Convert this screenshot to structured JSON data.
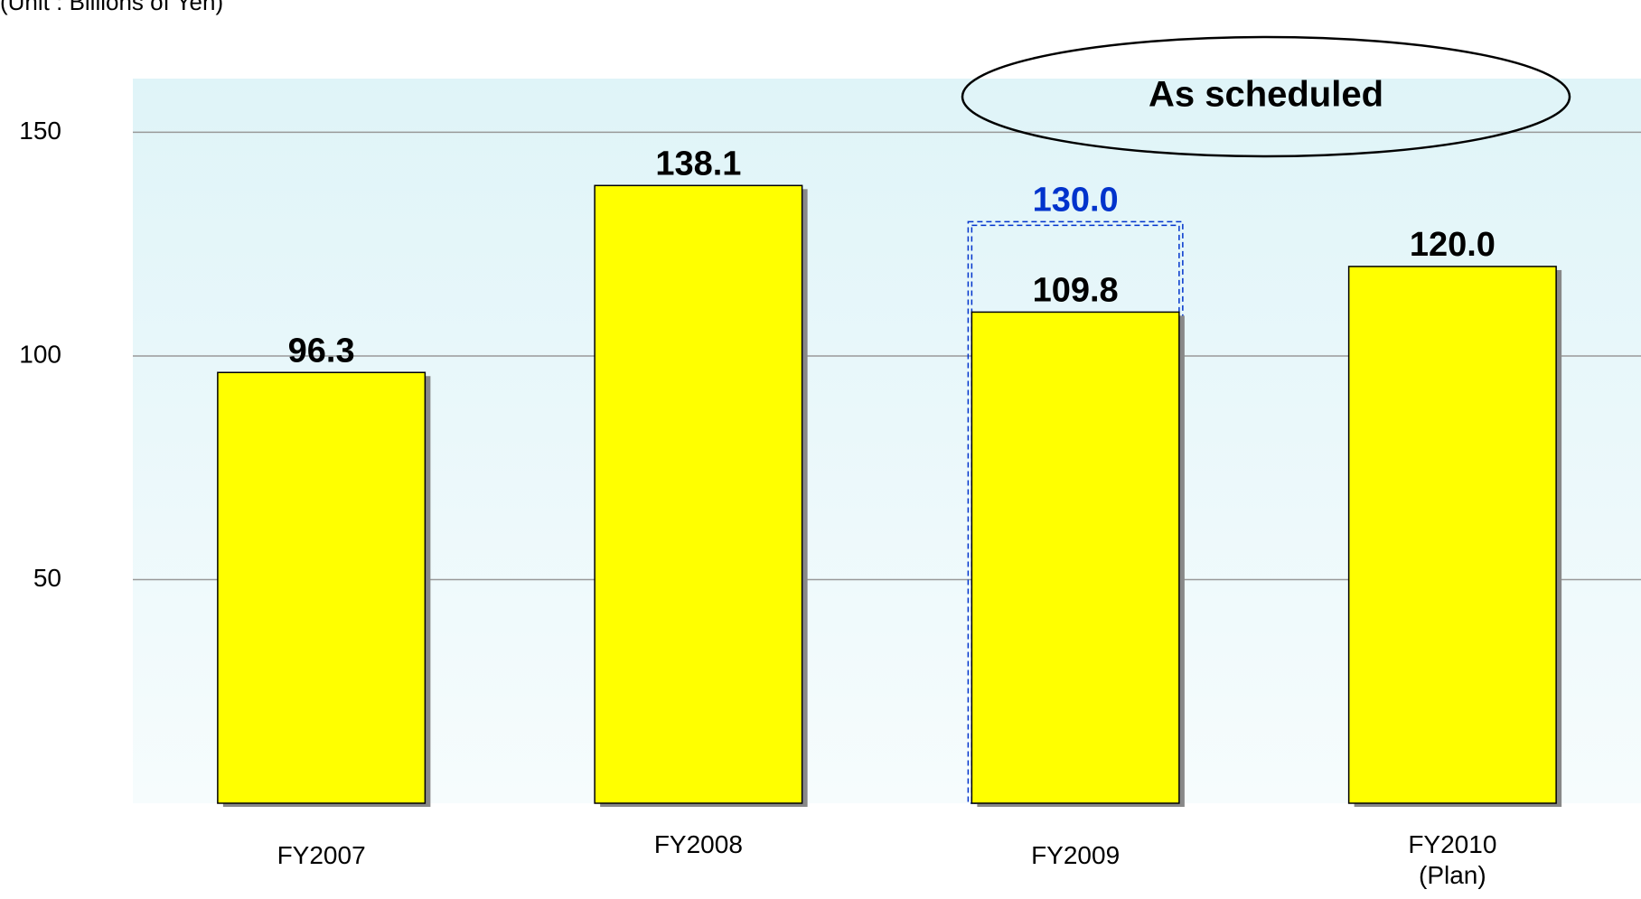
{
  "chart_data": {
    "type": "bar",
    "unit_label": "(Unit : Billions of Yen)",
    "annotation": "As scheduled",
    "categories": [
      "FY2007",
      "FY2008",
      "FY2009",
      "FY2010\n(Plan)"
    ],
    "values": [
      96.3,
      138.1,
      109.8,
      120.0
    ],
    "value_labels": [
      "96.3",
      "138.1",
      "109.8",
      "120.0"
    ],
    "color": "#ffff00",
    "dashed_values": [
      null,
      null,
      130.0,
      null
    ],
    "dashed_value_labels": [
      null,
      null,
      "130.0",
      null
    ],
    "dashed_color": "#0033cc",
    "ylim": [
      0,
      162
    ],
    "yticks": [
      50,
      100,
      150
    ],
    "grid": true
  }
}
